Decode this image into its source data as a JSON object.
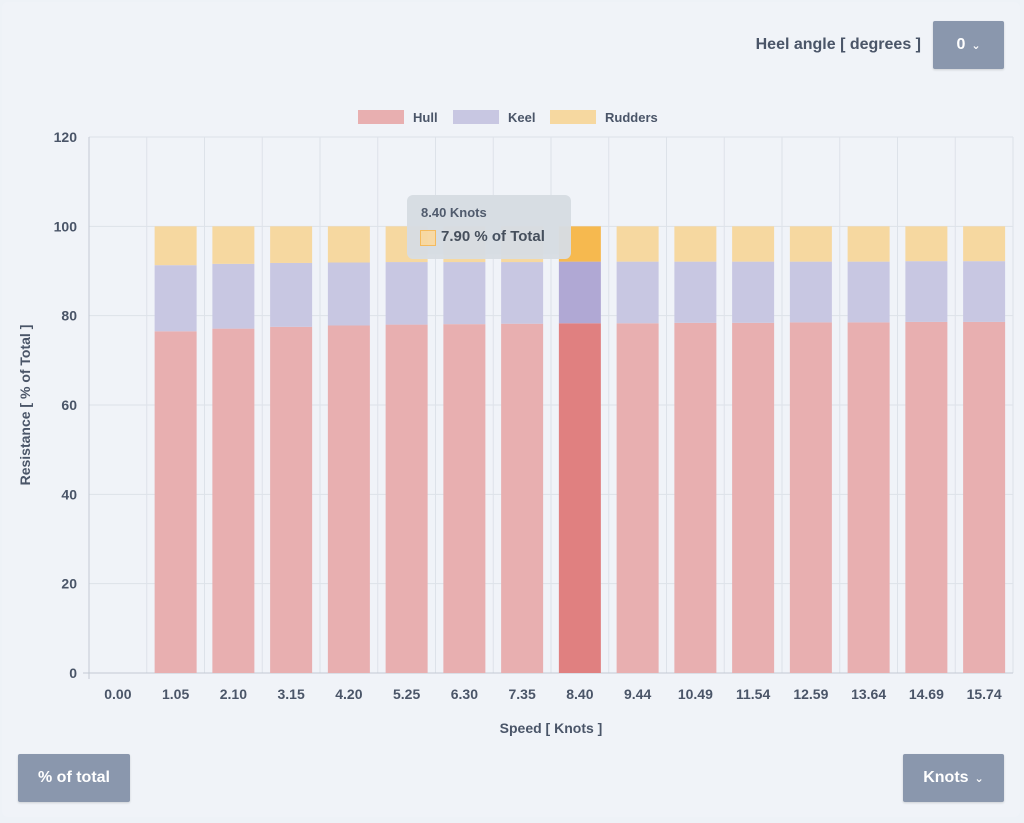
{
  "controls": {
    "heel_label": "Heel angle [ degrees ]",
    "heel_value": "0",
    "mode_label": "% of total",
    "unit_label": "Knots"
  },
  "tooltip": {
    "title": "8.40 Knots",
    "value": "7.90 % of Total",
    "swatch_color": "#f8d8a3"
  },
  "chart_data": {
    "type": "bar",
    "stacked": true,
    "categories": [
      "0.00",
      "1.05",
      "2.10",
      "3.15",
      "4.20",
      "5.25",
      "6.30",
      "7.35",
      "8.40",
      "9.44",
      "10.49",
      "11.54",
      "12.59",
      "13.64",
      "14.69",
      "15.74"
    ],
    "series": [
      {
        "name": "Hull",
        "color": "#e8afb0",
        "highlight": "#e08080",
        "values": [
          0,
          76.5,
          77.1,
          77.5,
          77.8,
          78.0,
          78.1,
          78.2,
          78.3,
          78.3,
          78.4,
          78.4,
          78.5,
          78.5,
          78.6,
          78.6
        ]
      },
      {
        "name": "Keel",
        "color": "#c8c7e2",
        "highlight": "#b0a8d4",
        "values": [
          0,
          14.8,
          14.5,
          14.3,
          14.1,
          14.0,
          13.9,
          13.8,
          13.8,
          13.8,
          13.7,
          13.7,
          13.6,
          13.6,
          13.6,
          13.6
        ]
      },
      {
        "name": "Rudders",
        "color": "#f6d8a0",
        "highlight": "#f6b94f",
        "values": [
          0,
          8.7,
          8.4,
          8.2,
          8.1,
          8.0,
          8.0,
          8.0,
          7.9,
          7.9,
          7.9,
          7.9,
          7.9,
          7.9,
          7.8,
          7.8
        ]
      }
    ],
    "highlight_index": 8,
    "xlabel": "Speed [ Knots ]",
    "ylabel": "Resistance [ % of Total ]",
    "ylim": [
      0,
      120
    ],
    "yticks": [
      "0",
      "20",
      "40",
      "60",
      "80",
      "100",
      "120"
    ],
    "grid": true,
    "legend": "top-center"
  }
}
